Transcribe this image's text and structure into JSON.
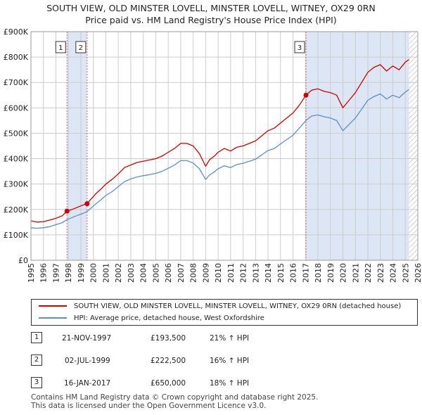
{
  "title_line1": "SOUTH VIEW, OLD MINSTER LOVELL, MINSTER LOVELL, WITNEY, OX29 0RN",
  "title_line2": "Price paid vs. HM Land Registry's House Price Index (HPI)",
  "legend": {
    "property": "SOUTH VIEW, OLD MINSTER LOVELL, MINSTER LOVELL, WITNEY, OX29 0RN (detached house)",
    "hpi": "HPI: Average price, detached house, West Oxfordshire"
  },
  "sales": [
    {
      "num": "1",
      "date": "21-NOV-1997",
      "price": "£193,500",
      "hpi": "21% ↑ HPI"
    },
    {
      "num": "2",
      "date": "02-JUL-1999",
      "price": "£222,500",
      "hpi": "16% ↑ HPI"
    },
    {
      "num": "3",
      "date": "16-JAN-2017",
      "price": "£650,000",
      "hpi": "18% ↑ HPI"
    }
  ],
  "footer_line1": "Contains HM Land Registry data © Crown copyright and database right 2025.",
  "footer_line2": "This data is licensed under the Open Government Licence v3.0.",
  "colors": {
    "property": "#cc0000",
    "hpi": "#5b8fc9",
    "shade": "#dde6f4",
    "vline": "#e06060",
    "grid": "#cccccc"
  },
  "chart_data": {
    "type": "line",
    "title": "Price paid vs. HM Land Registry's House Price Index (HPI)",
    "xlabel": "",
    "ylabel": "",
    "xlim": [
      1995,
      2026
    ],
    "ylim": [
      0,
      900000
    ],
    "y_ticks": [
      0,
      100000,
      200000,
      300000,
      400000,
      500000,
      600000,
      700000,
      800000,
      900000
    ],
    "y_tick_labels": [
      "£0",
      "£100K",
      "£200K",
      "£300K",
      "£400K",
      "£500K",
      "£600K",
      "£700K",
      "£800K",
      "£900K"
    ],
    "x_ticks": [
      "1995",
      "1996",
      "1997",
      "1998",
      "1999",
      "2000",
      "2001",
      "2002",
      "2003",
      "2004",
      "2005",
      "2006",
      "2007",
      "2008",
      "2009",
      "2010",
      "2011",
      "2012",
      "2013",
      "2014",
      "2015",
      "2016",
      "2017",
      "2018",
      "2019",
      "2020",
      "2021",
      "2022",
      "2023",
      "2024",
      "2025",
      "2026"
    ],
    "shaded_ranges": [
      [
        1997.89,
        1999.5
      ],
      [
        2017.04,
        2025.3
      ]
    ],
    "hatched_range": [
      2025.3,
      2026
    ],
    "sale_markers": [
      {
        "label": "1",
        "x": 1997.89,
        "y": 193500
      },
      {
        "label": "2",
        "x": 1999.5,
        "y": 222500
      },
      {
        "label": "3",
        "x": 2017.04,
        "y": 650000
      }
    ],
    "series": [
      {
        "name": "SOUTH VIEW, OLD MINSTER LOVELL, MINSTER LOVELL, WITNEY, OX29 0RN (detached house)",
        "color": "#cc0000",
        "x": [
          1995,
          1995.5,
          1996,
          1996.5,
          1997,
          1997.5,
          1997.89,
          1998.3,
          1998.8,
          1999.2,
          1999.5,
          1999.8,
          2000.2,
          2000.6,
          2001,
          2001.5,
          2002,
          2002.5,
          2003,
          2003.5,
          2004,
          2004.5,
          2005,
          2005.5,
          2006,
          2006.5,
          2007,
          2007.5,
          2008,
          2008.5,
          2009,
          2009.3,
          2009.7,
          2010,
          2010.5,
          2011,
          2011.5,
          2012,
          2012.5,
          2013,
          2013.5,
          2014,
          2014.5,
          2015,
          2015.5,
          2016,
          2016.5,
          2017.04,
          2017.5,
          2018,
          2018.5,
          2019,
          2019.5,
          2020,
          2020.5,
          2021,
          2021.5,
          2022,
          2022.5,
          2023,
          2023.5,
          2024,
          2024.5,
          2025,
          2025.3
        ],
        "values": [
          155000,
          150000,
          152000,
          158000,
          165000,
          175000,
          193500,
          200000,
          210000,
          218000,
          222500,
          240000,
          262000,
          280000,
          300000,
          318000,
          340000,
          365000,
          375000,
          385000,
          390000,
          395000,
          400000,
          410000,
          425000,
          440000,
          460000,
          460000,
          450000,
          420000,
          370000,
          395000,
          410000,
          425000,
          440000,
          430000,
          445000,
          450000,
          460000,
          470000,
          490000,
          510000,
          520000,
          540000,
          560000,
          580000,
          610000,
          650000,
          670000,
          675000,
          665000,
          660000,
          650000,
          600000,
          630000,
          660000,
          700000,
          740000,
          760000,
          770000,
          745000,
          765000,
          750000,
          780000,
          790000
        ]
      },
      {
        "name": "HPI: Average price, detached house, West Oxfordshire",
        "color": "#5b8fc9",
        "x": [
          1995,
          1995.5,
          1996,
          1996.5,
          1997,
          1997.5,
          1997.89,
          1998.3,
          1998.8,
          1999.2,
          1999.5,
          1999.8,
          2000.2,
          2000.6,
          2001,
          2001.5,
          2002,
          2002.5,
          2003,
          2003.5,
          2004,
          2004.5,
          2005,
          2005.5,
          2006,
          2006.5,
          2007,
          2007.5,
          2008,
          2008.5,
          2009,
          2009.3,
          2009.7,
          2010,
          2010.5,
          2011,
          2011.5,
          2012,
          2012.5,
          2013,
          2013.5,
          2014,
          2014.5,
          2015,
          2015.5,
          2016,
          2016.5,
          2017.04,
          2017.5,
          2018,
          2018.5,
          2019,
          2019.5,
          2020,
          2020.5,
          2021,
          2021.5,
          2022,
          2022.5,
          2023,
          2023.5,
          2024,
          2024.5,
          2025,
          2025.3
        ],
        "values": [
          128000,
          126000,
          128000,
          132000,
          140000,
          148000,
          160000,
          168000,
          178000,
          185000,
          192000,
          205000,
          222000,
          238000,
          255000,
          270000,
          290000,
          310000,
          320000,
          328000,
          333000,
          337000,
          342000,
          350000,
          362000,
          375000,
          392000,
          392000,
          383000,
          360000,
          318000,
          335000,
          348000,
          360000,
          372000,
          365000,
          377000,
          382000,
          390000,
          398000,
          415000,
          432000,
          440000,
          458000,
          475000,
          492000,
          520000,
          550000,
          568000,
          572000,
          565000,
          560000,
          550000,
          510000,
          535000,
          560000,
          595000,
          630000,
          645000,
          655000,
          635000,
          650000,
          640000,
          662000,
          672000
        ]
      }
    ]
  }
}
